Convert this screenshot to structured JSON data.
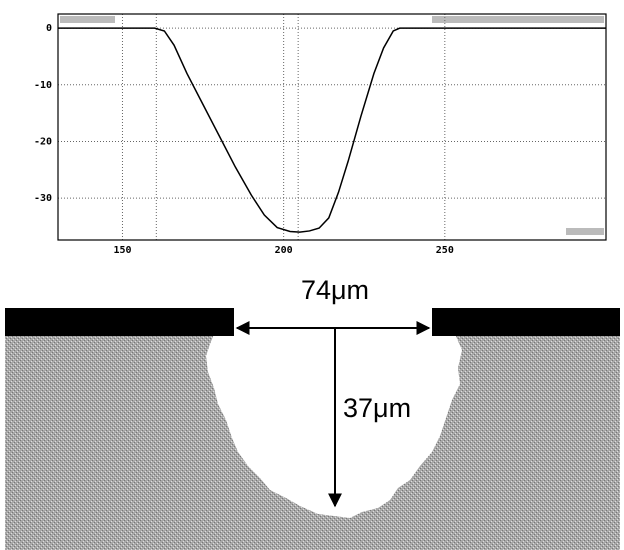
{
  "chart_data": {
    "type": "line",
    "x": [
      130,
      160,
      163,
      166,
      170,
      175,
      180,
      185,
      190,
      194,
      198,
      202,
      205,
      208,
      211,
      214,
      217,
      220,
      224,
      228,
      231,
      234,
      236,
      300
    ],
    "series": [
      {
        "color": "#000000",
        "values": [
          0,
          0,
          -0.5,
          -3,
          -8,
          -13.5,
          -19,
          -24.5,
          -29.5,
          -33,
          -35.2,
          -35.9,
          -36,
          -35.8,
          -35.3,
          -33.5,
          -29,
          -23.5,
          -15.5,
          -8,
          -3.5,
          -0.5,
          0,
          0
        ]
      }
    ],
    "xlim": [
      130,
      300
    ],
    "ylim": [
      -37.4,
      2.5
    ],
    "xticks": [
      150,
      200,
      250
    ],
    "yticks": [
      0,
      -10,
      -20,
      -30
    ],
    "cursors": [
      160.5,
      204.5
    ],
    "grid": true
  },
  "diagram": {
    "width_label": "74μm",
    "depth_label": "37μm"
  }
}
